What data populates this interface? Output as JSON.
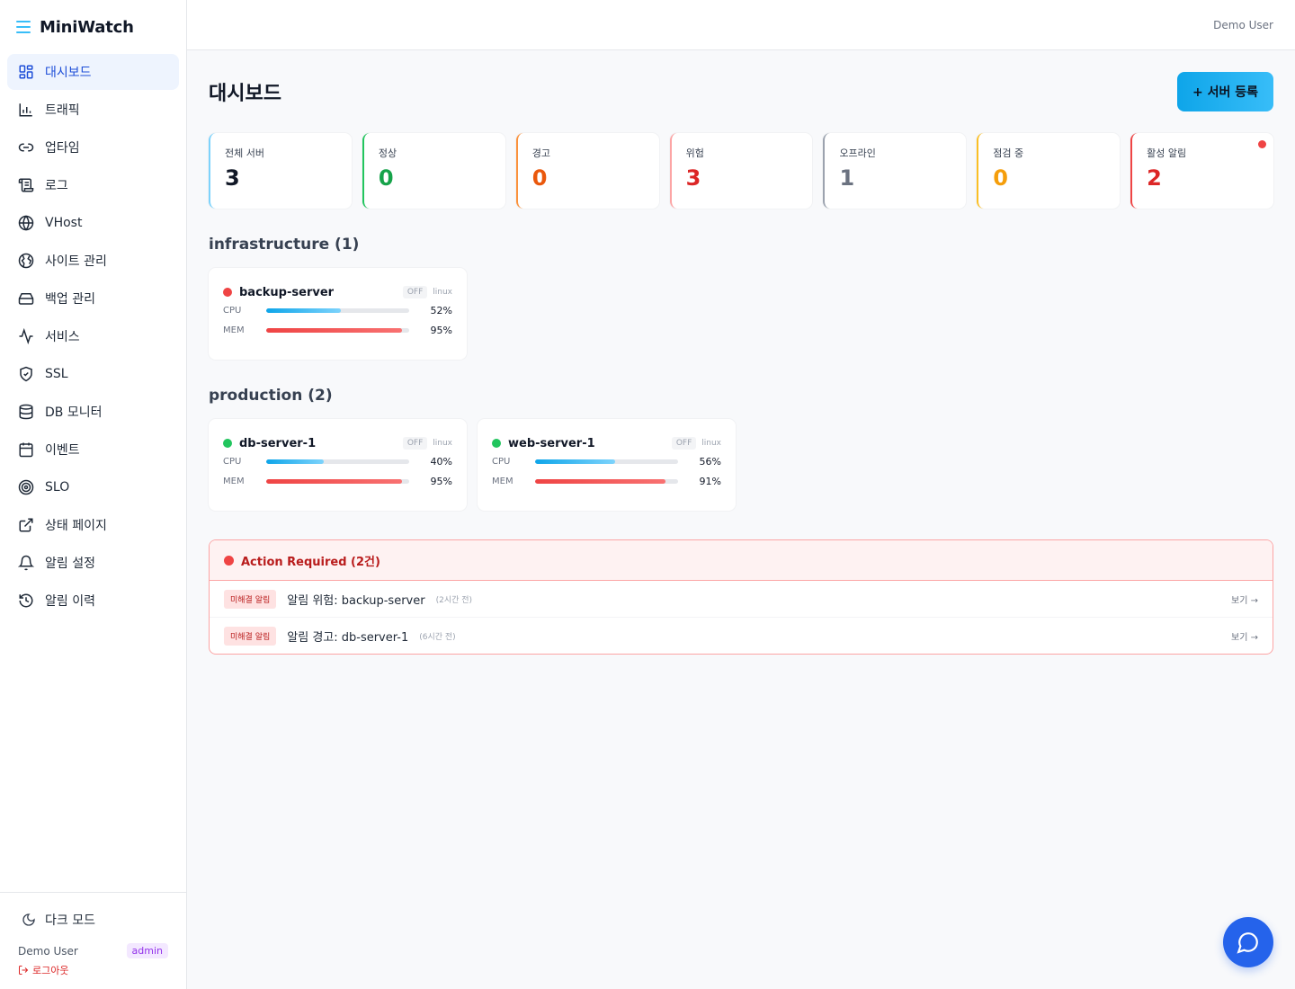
{
  "app": {
    "title": "MiniWatch"
  },
  "sidebar": {
    "items": [
      {
        "label": "대시보드",
        "icon": "dashboard-icon",
        "active": true
      },
      {
        "label": "트래픽",
        "icon": "bar-chart-icon"
      },
      {
        "label": "업타임",
        "icon": "link-icon"
      },
      {
        "label": "로그",
        "icon": "scroll-icon"
      },
      {
        "label": "VHost",
        "icon": "globe-icon"
      },
      {
        "label": "사이트 관리",
        "icon": "world-icon"
      },
      {
        "label": "백업 관리",
        "icon": "hard-drive-icon"
      },
      {
        "label": "서비스",
        "icon": "activity-icon"
      },
      {
        "label": "SSL",
        "icon": "shield-check-icon"
      },
      {
        "label": "DB 모니터",
        "icon": "database-icon"
      },
      {
        "label": "이벤트",
        "icon": "calendar-icon"
      },
      {
        "label": "SLO",
        "icon": "target-icon"
      },
      {
        "label": "상태 페이지",
        "icon": "external-link-icon"
      },
      {
        "label": "알림 설정",
        "icon": "bell-icon"
      },
      {
        "label": "알림 이력",
        "icon": "history-icon"
      }
    ],
    "dark_mode": "다크 모드",
    "user_name": "Demo User",
    "role": "admin",
    "logout": "로그아웃"
  },
  "topbar": {
    "user": "Demo User"
  },
  "page": {
    "title": "대시보드",
    "add_button": "+ 서버 등록"
  },
  "stats": [
    {
      "label": "전체 서버",
      "value": "3",
      "color": "#7dd3fc",
      "value_color": "#111827"
    },
    {
      "label": "정상",
      "value": "0",
      "color": "#22c55e",
      "value_color": "#16a34a"
    },
    {
      "label": "경고",
      "value": "0",
      "color": "#fb923c",
      "value_color": "#ea580c"
    },
    {
      "label": "위험",
      "value": "3",
      "color": "#fca5a5",
      "value_color": "#dc2626"
    },
    {
      "label": "오프라인",
      "value": "1",
      "color": "#9ca3af",
      "value_color": "#6b7280"
    },
    {
      "label": "점검 중",
      "value": "0",
      "color": "#fbbf24",
      "value_color": "#f59e0b"
    },
    {
      "label": "활성 알림",
      "value": "2",
      "color": "#ef4444",
      "value_color": "#dc2626"
    }
  ],
  "groups": [
    {
      "title": "infrastructure (1)",
      "servers": [
        {
          "name": "backup-server",
          "status_color": "#ef4444",
          "off": "OFF",
          "os": "linux",
          "cpu_label": "CPU",
          "mem_label": "MEM",
          "cpu": 52,
          "mem": 95,
          "cpu_text": "52%",
          "mem_text": "95%"
        }
      ]
    },
    {
      "title": "production (2)",
      "servers": [
        {
          "name": "db-server-1",
          "status_color": "#22c55e",
          "off": "OFF",
          "os": "linux",
          "cpu_label": "CPU",
          "mem_label": "MEM",
          "cpu": 40,
          "mem": 95,
          "cpu_text": "40%",
          "mem_text": "95%"
        },
        {
          "name": "web-server-1",
          "status_color": "#22c55e",
          "off": "OFF",
          "os": "linux",
          "cpu_label": "CPU",
          "mem_label": "MEM",
          "cpu": 56,
          "mem": 91,
          "cpu_text": "56%",
          "mem_text": "91%"
        }
      ]
    }
  ],
  "alerts": {
    "title": "Action Required (2건)",
    "items": [
      {
        "badge": "미해결 알림",
        "text": "알림 위험: backup-server",
        "time": "(2시간 전)",
        "view": "보기 →"
      },
      {
        "badge": "미해결 알림",
        "text": "알림 경고: db-server-1",
        "time": "(6시간 전)",
        "view": "보기 →"
      }
    ]
  }
}
